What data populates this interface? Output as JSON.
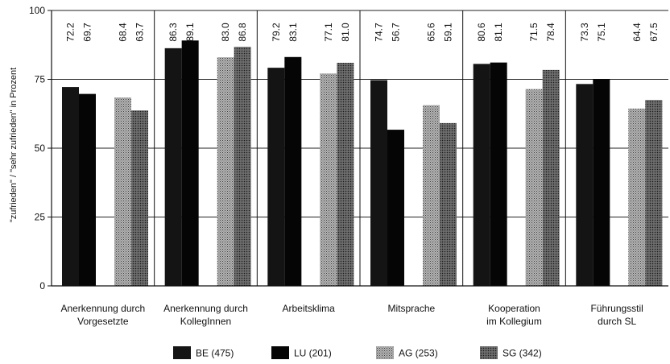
{
  "chart_data": {
    "type": "bar",
    "ylabel": "\"zufrieden\" / \"sehr zufrieden\" in Prozent",
    "ylim": [
      0,
      100
    ],
    "yticks": [
      0,
      25,
      50,
      75,
      100
    ],
    "grid": true,
    "legend_position": "bottom",
    "categories": [
      {
        "line1": "Anerkennung durch",
        "line2": "Vorgesetzte"
      },
      {
        "line1": "Anerkennung durch",
        "line2": "KollegInnen"
      },
      {
        "line1": "Arbeitsklima",
        "line2": ""
      },
      {
        "line1": "Mitsprache",
        "line2": ""
      },
      {
        "line1": "Kooperation",
        "line2": "im Kollegium"
      },
      {
        "line1": "Führungsstil",
        "line2": "durch SL"
      }
    ],
    "series": [
      {
        "name": "BE (475)",
        "color": "#141414",
        "pattern": "solid",
        "values": [
          72.2,
          86.3,
          79.2,
          74.7,
          80.6,
          73.3
        ]
      },
      {
        "name": "LU (201)",
        "color": "#050505",
        "pattern": "solid",
        "values": [
          69.7,
          89.1,
          83.1,
          56.7,
          81.1,
          75.1
        ]
      },
      {
        "name": "AG (253)",
        "color": "#8c8c8c",
        "pattern": "dotted-light",
        "values": [
          68.4,
          83.0,
          77.1,
          65.6,
          71.5,
          64.4
        ]
      },
      {
        "name": "SG (342)",
        "color": "#4a4a4a",
        "pattern": "dotted-dark",
        "values": [
          63.7,
          86.8,
          81.0,
          59.1,
          78.4,
          67.5
        ]
      }
    ]
  }
}
